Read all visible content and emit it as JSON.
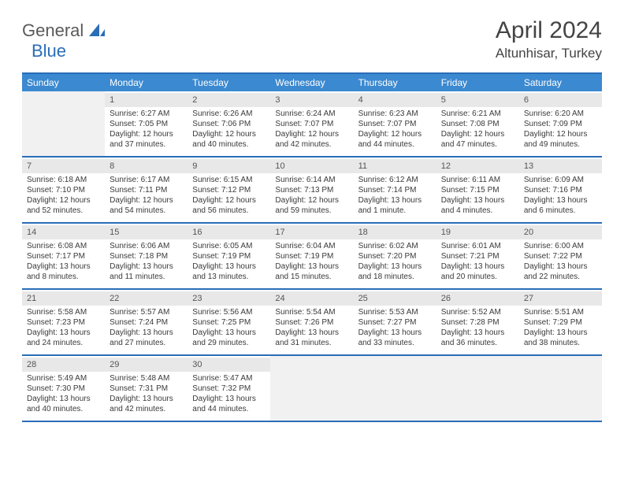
{
  "logo": {
    "text1": "General",
    "text2": "Blue"
  },
  "title": "April 2024",
  "location": "Altunhisar, Turkey",
  "colors": {
    "header_bg": "#3b89d0",
    "border": "#2a6db8",
    "daynum_bg": "#e8e8e8",
    "empty_bg": "#f1f1f1",
    "text": "#3a3a3a"
  },
  "day_names": [
    "Sunday",
    "Monday",
    "Tuesday",
    "Wednesday",
    "Thursday",
    "Friday",
    "Saturday"
  ],
  "weeks": [
    [
      {
        "num": "",
        "empty": true
      },
      {
        "num": "1",
        "sunrise": "Sunrise: 6:27 AM",
        "sunset": "Sunset: 7:05 PM",
        "day1": "Daylight: 12 hours",
        "day2": "and 37 minutes."
      },
      {
        "num": "2",
        "sunrise": "Sunrise: 6:26 AM",
        "sunset": "Sunset: 7:06 PM",
        "day1": "Daylight: 12 hours",
        "day2": "and 40 minutes."
      },
      {
        "num": "3",
        "sunrise": "Sunrise: 6:24 AM",
        "sunset": "Sunset: 7:07 PM",
        "day1": "Daylight: 12 hours",
        "day2": "and 42 minutes."
      },
      {
        "num": "4",
        "sunrise": "Sunrise: 6:23 AM",
        "sunset": "Sunset: 7:07 PM",
        "day1": "Daylight: 12 hours",
        "day2": "and 44 minutes."
      },
      {
        "num": "5",
        "sunrise": "Sunrise: 6:21 AM",
        "sunset": "Sunset: 7:08 PM",
        "day1": "Daylight: 12 hours",
        "day2": "and 47 minutes."
      },
      {
        "num": "6",
        "sunrise": "Sunrise: 6:20 AM",
        "sunset": "Sunset: 7:09 PM",
        "day1": "Daylight: 12 hours",
        "day2": "and 49 minutes."
      }
    ],
    [
      {
        "num": "7",
        "sunrise": "Sunrise: 6:18 AM",
        "sunset": "Sunset: 7:10 PM",
        "day1": "Daylight: 12 hours",
        "day2": "and 52 minutes."
      },
      {
        "num": "8",
        "sunrise": "Sunrise: 6:17 AM",
        "sunset": "Sunset: 7:11 PM",
        "day1": "Daylight: 12 hours",
        "day2": "and 54 minutes."
      },
      {
        "num": "9",
        "sunrise": "Sunrise: 6:15 AM",
        "sunset": "Sunset: 7:12 PM",
        "day1": "Daylight: 12 hours",
        "day2": "and 56 minutes."
      },
      {
        "num": "10",
        "sunrise": "Sunrise: 6:14 AM",
        "sunset": "Sunset: 7:13 PM",
        "day1": "Daylight: 12 hours",
        "day2": "and 59 minutes."
      },
      {
        "num": "11",
        "sunrise": "Sunrise: 6:12 AM",
        "sunset": "Sunset: 7:14 PM",
        "day1": "Daylight: 13 hours",
        "day2": "and 1 minute."
      },
      {
        "num": "12",
        "sunrise": "Sunrise: 6:11 AM",
        "sunset": "Sunset: 7:15 PM",
        "day1": "Daylight: 13 hours",
        "day2": "and 4 minutes."
      },
      {
        "num": "13",
        "sunrise": "Sunrise: 6:09 AM",
        "sunset": "Sunset: 7:16 PM",
        "day1": "Daylight: 13 hours",
        "day2": "and 6 minutes."
      }
    ],
    [
      {
        "num": "14",
        "sunrise": "Sunrise: 6:08 AM",
        "sunset": "Sunset: 7:17 PM",
        "day1": "Daylight: 13 hours",
        "day2": "and 8 minutes."
      },
      {
        "num": "15",
        "sunrise": "Sunrise: 6:06 AM",
        "sunset": "Sunset: 7:18 PM",
        "day1": "Daylight: 13 hours",
        "day2": "and 11 minutes."
      },
      {
        "num": "16",
        "sunrise": "Sunrise: 6:05 AM",
        "sunset": "Sunset: 7:19 PM",
        "day1": "Daylight: 13 hours",
        "day2": "and 13 minutes."
      },
      {
        "num": "17",
        "sunrise": "Sunrise: 6:04 AM",
        "sunset": "Sunset: 7:19 PM",
        "day1": "Daylight: 13 hours",
        "day2": "and 15 minutes."
      },
      {
        "num": "18",
        "sunrise": "Sunrise: 6:02 AM",
        "sunset": "Sunset: 7:20 PM",
        "day1": "Daylight: 13 hours",
        "day2": "and 18 minutes."
      },
      {
        "num": "19",
        "sunrise": "Sunrise: 6:01 AM",
        "sunset": "Sunset: 7:21 PM",
        "day1": "Daylight: 13 hours",
        "day2": "and 20 minutes."
      },
      {
        "num": "20",
        "sunrise": "Sunrise: 6:00 AM",
        "sunset": "Sunset: 7:22 PM",
        "day1": "Daylight: 13 hours",
        "day2": "and 22 minutes."
      }
    ],
    [
      {
        "num": "21",
        "sunrise": "Sunrise: 5:58 AM",
        "sunset": "Sunset: 7:23 PM",
        "day1": "Daylight: 13 hours",
        "day2": "and 24 minutes."
      },
      {
        "num": "22",
        "sunrise": "Sunrise: 5:57 AM",
        "sunset": "Sunset: 7:24 PM",
        "day1": "Daylight: 13 hours",
        "day2": "and 27 minutes."
      },
      {
        "num": "23",
        "sunrise": "Sunrise: 5:56 AM",
        "sunset": "Sunset: 7:25 PM",
        "day1": "Daylight: 13 hours",
        "day2": "and 29 minutes."
      },
      {
        "num": "24",
        "sunrise": "Sunrise: 5:54 AM",
        "sunset": "Sunset: 7:26 PM",
        "day1": "Daylight: 13 hours",
        "day2": "and 31 minutes."
      },
      {
        "num": "25",
        "sunrise": "Sunrise: 5:53 AM",
        "sunset": "Sunset: 7:27 PM",
        "day1": "Daylight: 13 hours",
        "day2": "and 33 minutes."
      },
      {
        "num": "26",
        "sunrise": "Sunrise: 5:52 AM",
        "sunset": "Sunset: 7:28 PM",
        "day1": "Daylight: 13 hours",
        "day2": "and 36 minutes."
      },
      {
        "num": "27",
        "sunrise": "Sunrise: 5:51 AM",
        "sunset": "Sunset: 7:29 PM",
        "day1": "Daylight: 13 hours",
        "day2": "and 38 minutes."
      }
    ],
    [
      {
        "num": "28",
        "sunrise": "Sunrise: 5:49 AM",
        "sunset": "Sunset: 7:30 PM",
        "day1": "Daylight: 13 hours",
        "day2": "and 40 minutes."
      },
      {
        "num": "29",
        "sunrise": "Sunrise: 5:48 AM",
        "sunset": "Sunset: 7:31 PM",
        "day1": "Daylight: 13 hours",
        "day2": "and 42 minutes."
      },
      {
        "num": "30",
        "sunrise": "Sunrise: 5:47 AM",
        "sunset": "Sunset: 7:32 PM",
        "day1": "Daylight: 13 hours",
        "day2": "and 44 minutes."
      },
      {
        "num": "",
        "empty": true
      },
      {
        "num": "",
        "empty": true
      },
      {
        "num": "",
        "empty": true
      },
      {
        "num": "",
        "empty": true
      }
    ]
  ]
}
